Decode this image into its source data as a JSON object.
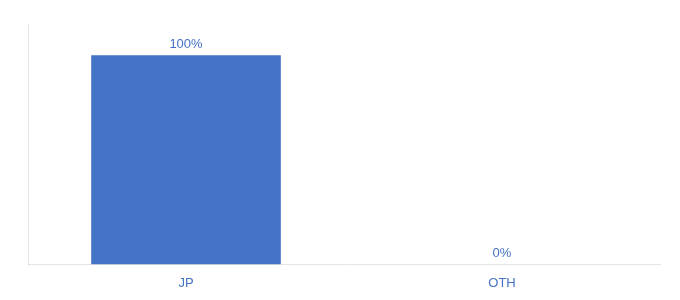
{
  "chart_data": {
    "type": "bar",
    "categories": [
      "JP",
      "OTH"
    ],
    "values": [
      100,
      0
    ],
    "value_labels": [
      "100%",
      "0%"
    ],
    "color": "#4472c4",
    "ylim": [
      0,
      115
    ],
    "grid": false,
    "data_labels": true,
    "tick_labels": "x"
  }
}
